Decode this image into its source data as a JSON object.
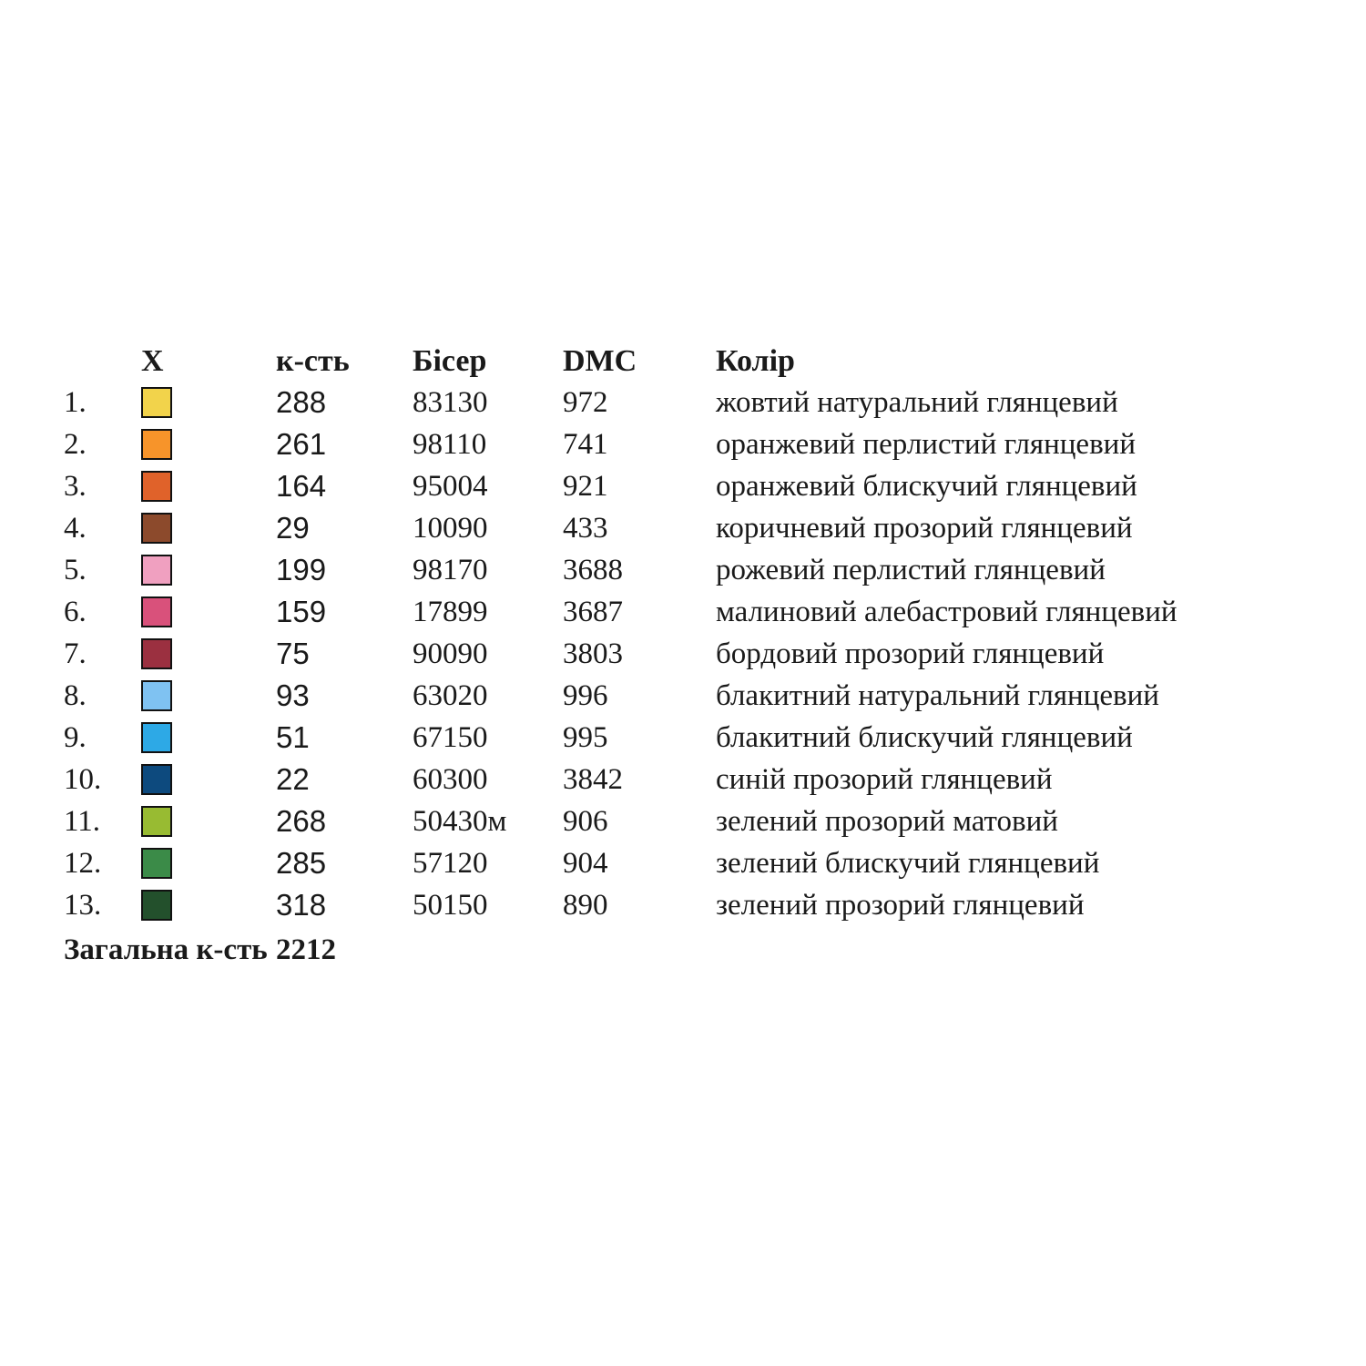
{
  "headers": {
    "symbol": "X",
    "quantity": "к-сть",
    "bead": "Бісер",
    "dmc": "DMC",
    "color": "Колір"
  },
  "rows": [
    {
      "num": "1.",
      "swatch": "#f2d34b",
      "qty": "288",
      "bead": "83130",
      "dmc": "972",
      "color": "жовтий натуральний глянцевий"
    },
    {
      "num": "2.",
      "swatch": "#f7942a",
      "qty": "261",
      "bead": "98110",
      "dmc": "741",
      "color": "оранжевий перлистий глянцевий"
    },
    {
      "num": "3.",
      "swatch": "#e0622a",
      "qty": "164",
      "bead": "95004",
      "dmc": "921",
      "color": "оранжевий блискучий глянцевий"
    },
    {
      "num": "4.",
      "swatch": "#8c4a2c",
      "qty": "29",
      "bead": "10090",
      "dmc": "433",
      "color": "коричневий прозорий глянцевий"
    },
    {
      "num": "5.",
      "swatch": "#f0a0c0",
      "qty": "199",
      "bead": "98170",
      "dmc": "3688",
      "color": "рожевий перлистий глянцевий"
    },
    {
      "num": "6.",
      "swatch": "#d9517b",
      "qty": "159",
      "bead": "17899",
      "dmc": "3687",
      "color": "малиновий алебастровий глянцевий"
    },
    {
      "num": "7.",
      "swatch": "#9b3040",
      "qty": "75",
      "bead": "90090",
      "dmc": "3803",
      "color": "бордовий прозорий глянцевий"
    },
    {
      "num": "8.",
      "swatch": "#7fc2f2",
      "qty": "93",
      "bead": "63020",
      "dmc": "996",
      "color": "блакитний натуральний глянцевий"
    },
    {
      "num": "9.",
      "swatch": "#2da9e6",
      "qty": "51",
      "bead": "67150",
      "dmc": "995",
      "color": "блакитний блискучий глянцевий"
    },
    {
      "num": "10.",
      "swatch": "#0d4a7e",
      "qty": "22",
      "bead": "60300",
      "dmc": "3842",
      "color": "синій прозорий глянцевий"
    },
    {
      "num": "11.",
      "swatch": "#98bb32",
      "qty": "268",
      "bead": "50430м",
      "dmc": "906",
      "color": "зелений прозорий матовий"
    },
    {
      "num": "12.",
      "swatch": "#3b8b48",
      "qty": "285",
      "bead": "57120",
      "dmc": "904",
      "color": "зелений блискучий глянцевий"
    },
    {
      "num": "13.",
      "swatch": "#23502c",
      "qty": "318",
      "bead": "50150",
      "dmc": "890",
      "color": "зелений прозорий глянцевий"
    }
  ],
  "total": {
    "label": "Загальна к-сть",
    "value": "2212"
  }
}
